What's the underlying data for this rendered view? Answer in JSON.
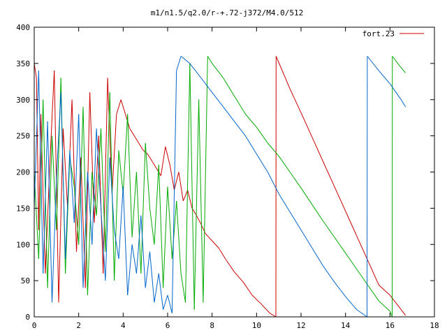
{
  "chart_data": {
    "type": "line",
    "title": "m1/n1.5/q2.0/r-+.72-j372/M4.0/512",
    "xlabel": "",
    "ylabel": "",
    "xlim": [
      0,
      18
    ],
    "ylim": [
      0,
      400
    ],
    "x_ticks": [
      0,
      2,
      4,
      6,
      8,
      10,
      12,
      14,
      16,
      18
    ],
    "y_ticks": [
      0,
      50,
      100,
      150,
      200,
      250,
      300,
      350,
      400
    ],
    "x_tick_labels": [
      "0",
      "2",
      "4",
      "6",
      "8",
      "10",
      "12",
      "14",
      "16",
      "18"
    ],
    "y_tick_labels": [
      "0",
      "50",
      "100",
      "150",
      "200",
      "250",
      "300",
      "350",
      "400"
    ],
    "grid": false,
    "legend_position": "top-right",
    "legend": [
      {
        "label": "fort.23",
        "color": "#cc0000"
      }
    ],
    "colors": {
      "red": "#cc0000",
      "green": "#00aa00",
      "blue": "#0066cc"
    },
    "series": [
      {
        "color": "#cc0000",
        "description": "red track",
        "x": [
          0.0,
          0.1,
          0.2,
          0.3,
          0.5,
          0.7,
          0.9,
          1.1,
          1.3,
          1.5,
          1.7,
          1.9,
          2.1,
          2.3,
          2.5,
          2.7,
          2.9,
          3.1,
          3.3,
          3.5,
          3.7,
          3.9,
          4.1,
          4.3,
          4.5,
          4.7,
          4.9,
          5.1,
          5.3,
          5.5,
          5.7,
          5.9,
          6.1,
          6.3,
          6.5,
          6.7,
          6.9,
          7.1,
          7.3,
          7.5,
          7.7,
          8.0,
          8.3,
          8.6,
          9.0,
          9.4,
          9.8,
          10.2,
          10.6,
          10.87,
          10.88,
          11.5,
          12.0,
          12.5,
          13.0,
          13.5,
          14.0,
          14.5,
          15.0,
          15.5,
          16.0,
          16.5,
          16.7
        ],
        "y": [
          350,
          330,
          120,
          280,
          60,
          210,
          340,
          20,
          260,
          150,
          300,
          90,
          220,
          40,
          310,
          130,
          250,
          60,
          330,
          170,
          280,
          300,
          280,
          260,
          250,
          240,
          230,
          225,
          215,
          205,
          195,
          235,
          210,
          175,
          200,
          160,
          175,
          150,
          140,
          128,
          115,
          105,
          95,
          80,
          62,
          48,
          30,
          18,
          5,
          0,
          360,
          315,
          282,
          248,
          214,
          180,
          146,
          112,
          78,
          44,
          30,
          10,
          2
        ]
      },
      {
        "color": "#00aa00",
        "description": "green track",
        "x": [
          0.0,
          0.2,
          0.4,
          0.6,
          0.8,
          1.0,
          1.2,
          1.4,
          1.6,
          1.8,
          2.0,
          2.2,
          2.4,
          2.6,
          2.8,
          3.0,
          3.2,
          3.4,
          3.6,
          3.8,
          4.0,
          4.2,
          4.4,
          4.6,
          4.8,
          5.0,
          5.2,
          5.4,
          5.6,
          5.8,
          6.0,
          6.2,
          6.4,
          6.6,
          6.8,
          7.0,
          7.2,
          7.4,
          7.6,
          7.8,
          8.0,
          8.5,
          9.0,
          9.5,
          10.0,
          10.5,
          11.0,
          11.5,
          12.0,
          12.5,
          13.0,
          13.5,
          14.0,
          14.5,
          15.0,
          15.5,
          16.0,
          16.1,
          16.11,
          16.4,
          16.7
        ],
        "y": [
          200,
          80,
          300,
          40,
          250,
          120,
          330,
          60,
          220,
          180,
          100,
          290,
          30,
          200,
          140,
          260,
          90,
          310,
          50,
          230,
          170,
          280,
          110,
          200,
          60,
          240,
          150,
          100,
          210,
          40,
          180,
          80,
          160,
          60,
          20,
          350,
          10,
          300,
          20,
          360,
          350,
          330,
          305,
          280,
          262,
          240,
          222,
          200,
          178,
          155,
          132,
          110,
          88,
          66,
          44,
          22,
          8,
          0,
          360,
          348,
          337
        ]
      },
      {
        "color": "#0066cc",
        "description": "blue track",
        "x": [
          0.0,
          0.2,
          0.4,
          0.6,
          0.8,
          1.0,
          1.2,
          1.4,
          1.6,
          1.8,
          2.0,
          2.2,
          2.4,
          2.6,
          2.8,
          3.0,
          3.2,
          3.4,
          3.6,
          3.8,
          4.0,
          4.2,
          4.4,
          4.6,
          4.8,
          5.0,
          5.2,
          5.4,
          5.6,
          5.8,
          6.0,
          6.2,
          6.4,
          6.6,
          6.8,
          7.0,
          7.5,
          8.0,
          8.5,
          9.0,
          9.5,
          10.0,
          10.5,
          11.0,
          11.5,
          12.0,
          12.5,
          13.0,
          13.5,
          14.0,
          14.5,
          14.97,
          14.98,
          15.5,
          16.0,
          16.5,
          16.7
        ],
        "y": [
          150,
          340,
          60,
          270,
          20,
          190,
          310,
          80,
          230,
          130,
          280,
          40,
          200,
          100,
          260,
          150,
          50,
          220,
          120,
          80,
          180,
          30,
          100,
          60,
          140,
          40,
          90,
          20,
          60,
          10,
          30,
          5,
          340,
          360,
          355,
          350,
          330,
          310,
          290,
          270,
          250,
          225,
          200,
          170,
          145,
          120,
          95,
          70,
          48,
          28,
          10,
          0,
          360,
          340,
          322,
          300,
          290
        ]
      }
    ]
  }
}
